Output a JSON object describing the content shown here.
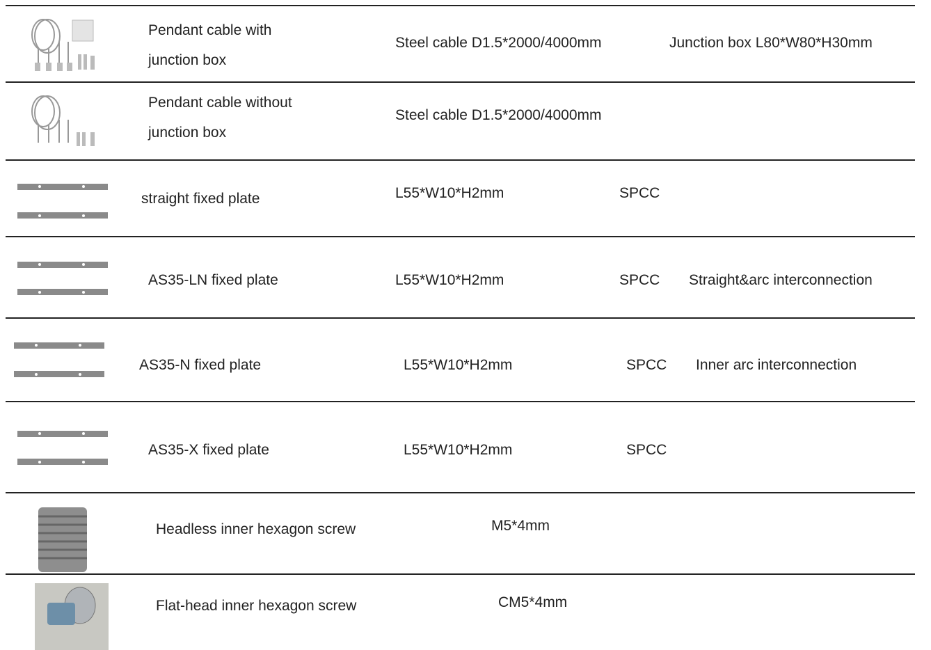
{
  "table": {
    "rows": [
      {
        "name": [
          "Pendant cable with",
          "junction box"
        ],
        "spec": "Steel cable D1.5*2000/4000mm",
        "note": "Junction box L80*W80*H30mm"
      },
      {
        "name": [
          "Pendant cable without",
          "junction box"
        ],
        "spec": "Steel cable D1.5*2000/4000mm"
      },
      {
        "name": [
          "straight fixed plate"
        ],
        "spec": "L55*W10*H2mm",
        "material": "SPCC"
      },
      {
        "name": [
          "AS35-LN fixed plate"
        ],
        "spec": "L55*W10*H2mm",
        "material": "SPCC",
        "note": "Straight&arc interconnection"
      },
      {
        "name": [
          "AS35-N fixed plate"
        ],
        "spec": "L55*W10*H2mm",
        "material": "SPCC",
        "note": "Inner arc interconnection"
      },
      {
        "name": [
          "AS35-X fixed plate"
        ],
        "spec": "L55*W10*H2mm",
        "material": "SPCC"
      },
      {
        "name": [
          "Headless inner hexagon screw"
        ],
        "spec": "M5*4mm"
      },
      {
        "name": [
          "Flat-head inner hexagon screw"
        ],
        "spec": "CM5*4mm"
      }
    ]
  }
}
